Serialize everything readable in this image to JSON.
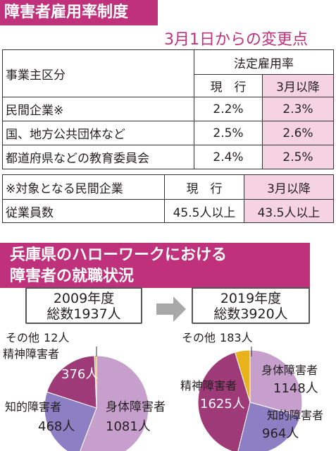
{
  "header": {
    "title": "障害者雇用率制度",
    "subtitle": "3月1日からの変更点"
  },
  "rate_table": {
    "col_label": "事業主区分",
    "group_header": "法定雇用率",
    "current_label": "現　行",
    "after_label": "3月以降",
    "rows": [
      {
        "name": "民間企業※",
        "current": "2.2%",
        "after": "2.3%"
      },
      {
        "name": "国、地方公共団体など",
        "current": "2.5%",
        "after": "2.6%"
      },
      {
        "name": "都道府県などの教育委員会",
        "current": "2.4%",
        "after": "2.5%"
      }
    ]
  },
  "note_table": {
    "title": "※対象となる民間企業",
    "current_label": "現　行",
    "after_label": "3月以降",
    "row_label": "従業員数",
    "current": "45.5人以上",
    "after": "43.5人以上"
  },
  "section": {
    "title_line1": "兵庫県のハローワークにおける",
    "title_line2": "障害者の就職状況"
  },
  "colors": {
    "accent": "#c0317c",
    "pink_cell": "#f6d3e2",
    "physical": "#c79fcd",
    "intellectual": "#8d7fc4",
    "mental": "#9e3a78",
    "other": "#e8b21a"
  },
  "chart_data": [
    {
      "type": "pie",
      "title": "2009年度",
      "subtitle": "総数1937人",
      "categories": [
        "身体障害者",
        "知的障害者",
        "精神障害者",
        "その他"
      ],
      "values": [
        1081,
        468,
        376,
        12
      ],
      "value_labels": [
        "1081人",
        "468人",
        "376人",
        "12人"
      ]
    },
    {
      "type": "pie",
      "title": "2019年度",
      "subtitle": "総数3920人",
      "categories": [
        "身体障害者",
        "知的障害者",
        "精神障害者",
        "その他"
      ],
      "values": [
        1148,
        964,
        1625,
        183
      ],
      "value_labels": [
        "1148人",
        "964人",
        "1625人",
        "183人"
      ]
    }
  ]
}
